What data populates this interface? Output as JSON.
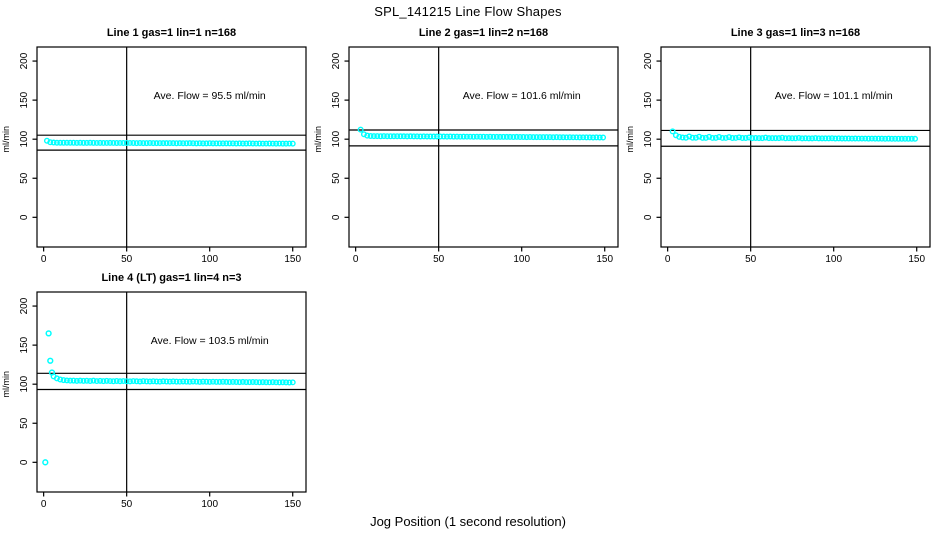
{
  "title": "SPL_141215  Line Flow Shapes",
  "xlabel": "Jog Position (1 second resolution)",
  "chart_data": {
    "type": "scatter",
    "title": "SPL_141215  Line Flow Shapes",
    "xlabel": "Jog Position (1 second resolution)",
    "ylabel": "ml/min",
    "x_ticks": [
      0,
      50,
      100,
      150
    ],
    "y_ticks": [
      0,
      50,
      100,
      150,
      200
    ],
    "xlim": [
      -4,
      158
    ],
    "ylim": [
      -38,
      218
    ],
    "grid": false,
    "legend": "none",
    "point_color": "#00FFFF",
    "line_color": "#000000",
    "panels": [
      {
        "title": "Line 1 gas=1 lin=1 n=168",
        "n": 168,
        "ave_flow": 95.5,
        "annotation": "Ave. Flow =  95.5  ml/min",
        "annotation_xy": [
          100,
          155
        ],
        "hlines": [
          105.1,
          86.0
        ],
        "vline": 50,
        "band": {
          "x_start": 2,
          "x_step": 2,
          "y": [
            98.0,
            96.1,
            95.7,
            95.5,
            95.5,
            95.4,
            95.5,
            95.4,
            95.4,
            95.3,
            95.4,
            95.3,
            95.3,
            95.4,
            95.3,
            95.2,
            95.3,
            95.2,
            95.2,
            95.3,
            95.2,
            95.1,
            95.2,
            95.1,
            95.1,
            95.2,
            95.1,
            95.0,
            95.1,
            95.0,
            95.0,
            95.1,
            95.0,
            94.9,
            95.0,
            94.9,
            94.9,
            95.0,
            94.9,
            94.8,
            94.9,
            94.8,
            94.8,
            94.9,
            94.8,
            94.7,
            94.8,
            94.7,
            94.7,
            94.8,
            94.7,
            94.6,
            94.7,
            94.6,
            94.6,
            94.7,
            94.6,
            94.5,
            94.6,
            94.5,
            94.5,
            94.6,
            94.5,
            94.4,
            94.5,
            94.4,
            94.4,
            94.5,
            94.4,
            94.3,
            94.4,
            94.3,
            94.3,
            94.4,
            94.3
          ]
        },
        "outliers": []
      },
      {
        "title": "Line 2 gas=1 lin=2 n=168",
        "n": 168,
        "ave_flow": 101.6,
        "annotation": "Ave. Flow =  101.6  ml/min",
        "annotation_xy": [
          100,
          155
        ],
        "hlines": [
          111.8,
          91.4
        ],
        "vline": 50,
        "band": {
          "x_start": 3,
          "x_step": 2,
          "y": [
            112.3,
            106.3,
            104.6,
            104.1,
            103.9,
            103.9,
            103.8,
            103.9,
            103.8,
            103.8,
            103.7,
            103.8,
            103.7,
            103.7,
            103.6,
            103.7,
            103.6,
            103.6,
            103.5,
            103.6,
            103.5,
            103.5,
            103.4,
            103.5,
            103.4,
            103.4,
            103.3,
            103.4,
            103.3,
            103.3,
            103.2,
            103.3,
            103.2,
            103.2,
            103.1,
            103.2,
            103.1,
            103.1,
            103.0,
            103.1,
            103.0,
            103.0,
            102.9,
            103.0,
            102.9,
            102.9,
            102.8,
            102.9,
            102.8,
            102.8,
            102.7,
            102.8,
            102.7,
            102.7,
            102.6,
            102.7,
            102.6,
            102.6,
            102.5,
            102.6,
            102.5,
            102.5,
            102.4,
            102.5,
            102.4,
            102.4,
            102.3,
            102.4,
            102.3,
            102.3,
            102.2,
            102.3,
            102.2,
            102.2
          ]
        },
        "outliers": []
      },
      {
        "title": "Line 3 gas=1 lin=3 n=168",
        "n": 168,
        "ave_flow": 101.1,
        "annotation": "Ave. Flow =  101.1  ml/min",
        "annotation_xy": [
          100,
          155
        ],
        "hlines": [
          111.2,
          91.0
        ],
        "vline": 50,
        "band": {
          "x_start": 3,
          "x_step": 2,
          "y": [
            110.0,
            105.0,
            103.0,
            102.2,
            101.9,
            103.5,
            101.8,
            101.8,
            103.2,
            101.7,
            101.7,
            103.0,
            101.6,
            101.7,
            102.8,
            101.6,
            101.6,
            102.6,
            101.5,
            101.6,
            102.4,
            101.5,
            101.5,
            102.2,
            101.4,
            101.5,
            101.4,
            101.4,
            102.0,
            101.3,
            101.4,
            101.3,
            101.3,
            101.8,
            101.2,
            101.3,
            101.2,
            101.2,
            101.6,
            101.1,
            101.2,
            101.1,
            101.1,
            101.4,
            101.0,
            101.1,
            101.0,
            101.0,
            101.2,
            100.9,
            101.0,
            100.9,
            100.9,
            100.9,
            100.8,
            100.9,
            100.8,
            100.8,
            100.8,
            100.7,
            100.8,
            100.7,
            100.7,
            100.7,
            100.6,
            100.7,
            100.6,
            100.6,
            100.6,
            100.5,
            100.6,
            100.5,
            100.5,
            100.5
          ]
        },
        "outliers": []
      },
      {
        "title": "Line 4 (LT) gas=1 lin=4 n=3",
        "n": 3,
        "ave_flow": 103.5,
        "annotation": "Ave. Flow =  103.5  ml/min",
        "annotation_xy": [
          100,
          155
        ],
        "hlines": [
          113.9,
          93.2
        ],
        "vline": 50,
        "band": {
          "x_start": 6,
          "x_step": 2,
          "y": [
            110.0,
            107.5,
            106.0,
            105.2,
            104.8,
            104.5,
            104.6,
            104.3,
            104.5,
            104.2,
            104.4,
            104.1,
            104.5,
            104.0,
            104.3,
            103.9,
            104.2,
            104.0,
            103.8,
            104.1,
            103.7,
            104.0,
            103.8,
            103.6,
            104.0,
            103.7,
            103.5,
            103.9,
            103.6,
            103.4,
            103.8,
            103.5,
            103.3,
            103.7,
            103.4,
            103.3,
            103.6,
            103.3,
            103.2,
            103.5,
            103.3,
            103.1,
            103.4,
            103.2,
            103.0,
            103.3,
            103.1,
            103.0,
            103.2,
            103.0,
            102.9,
            103.1,
            102.9,
            102.8,
            103.0,
            102.8,
            102.7,
            102.9,
            102.7,
            102.6,
            102.8,
            102.6,
            102.5,
            102.7,
            102.5,
            102.4,
            102.6,
            102.4,
            102.3,
            102.5,
            102.3,
            102.2,
            102.4
          ]
        },
        "outliers": [
          [
            1,
            0
          ],
          [
            3,
            165
          ],
          [
            4,
            130
          ],
          [
            5,
            115
          ]
        ]
      }
    ]
  }
}
